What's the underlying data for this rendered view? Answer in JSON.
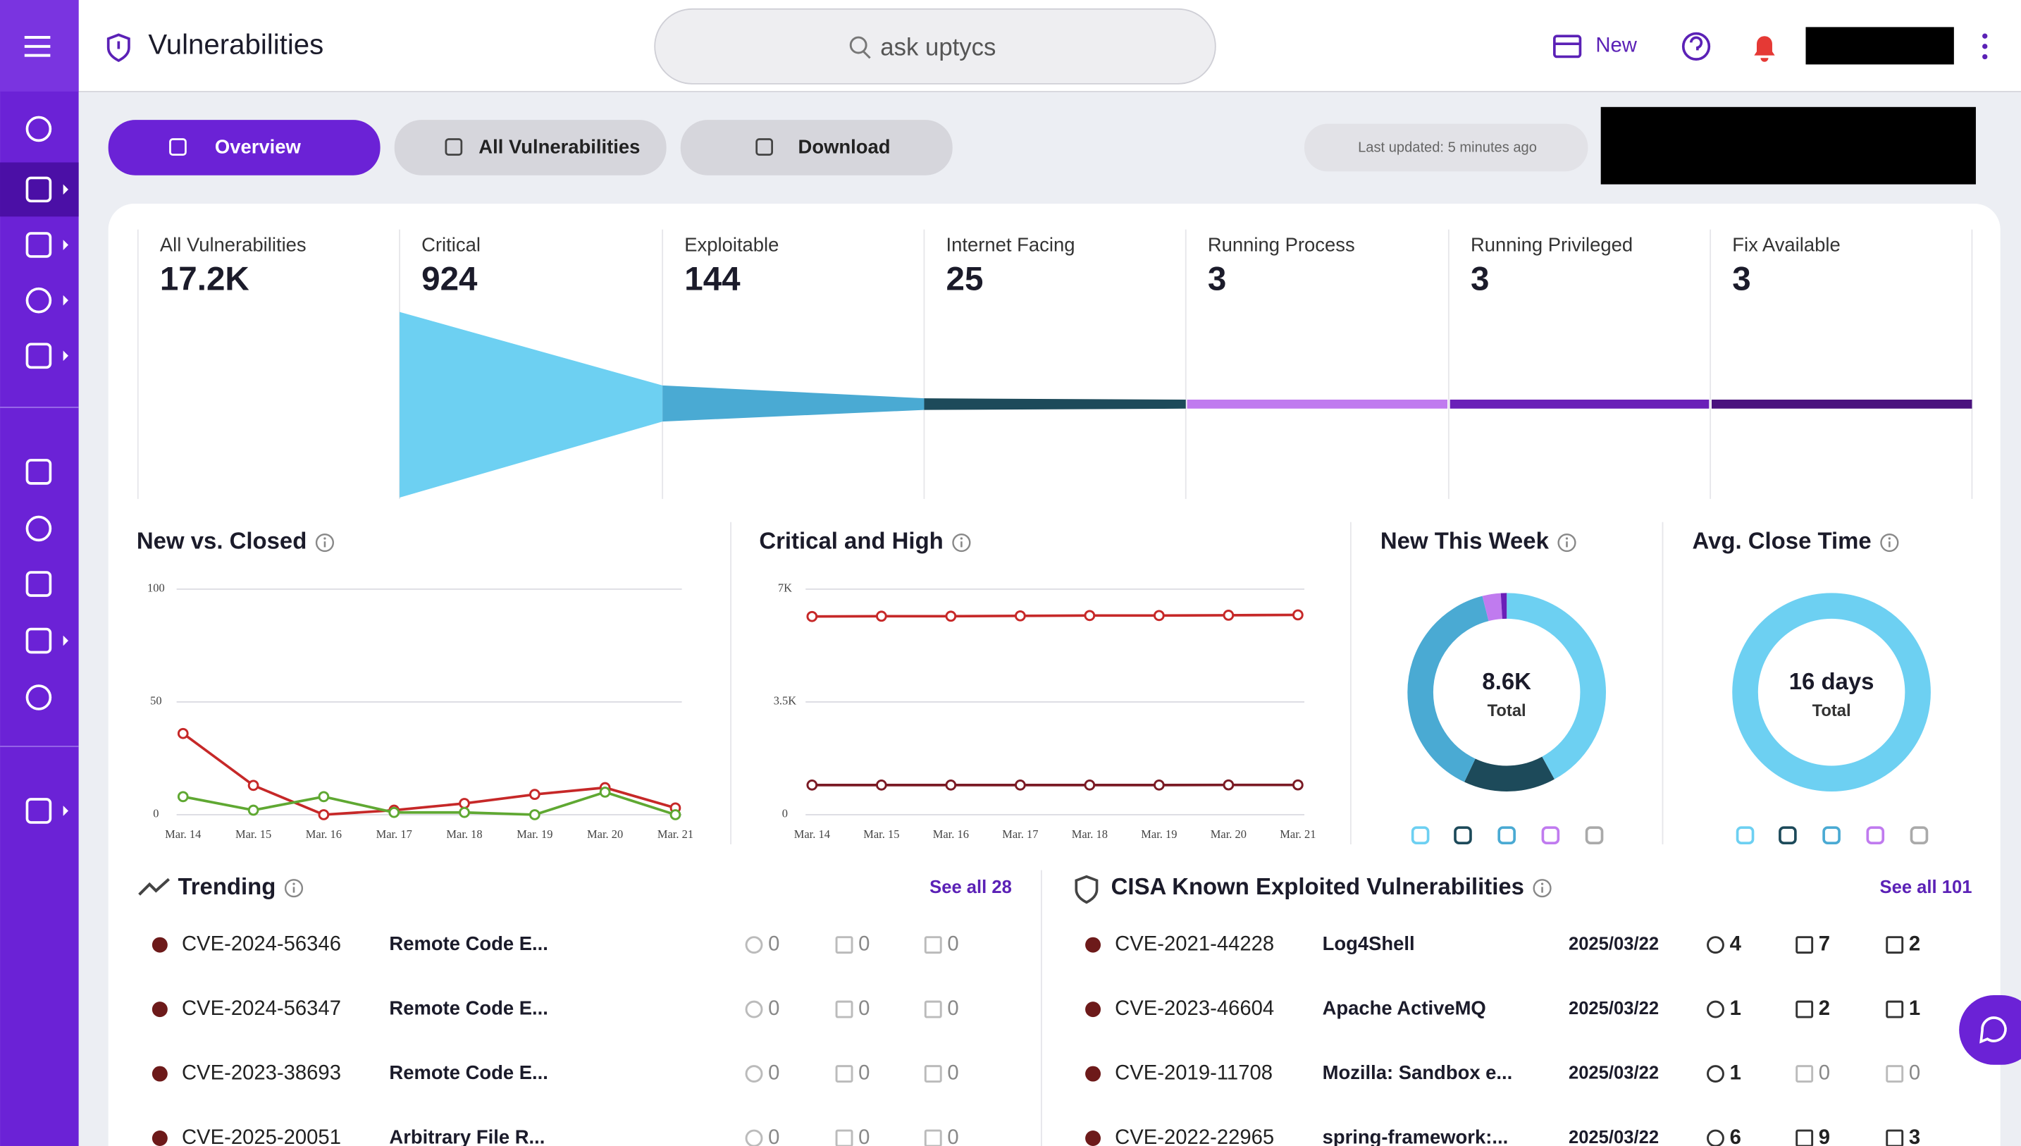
{
  "header": {
    "title": "Vulnerabilities",
    "search": "ask uptycs",
    "new": "New"
  },
  "toolbar": {
    "tabs": [
      "Overview",
      "All Vulnerabilities",
      "Download"
    ],
    "last_updated": "Last updated: 5 minutes ago"
  },
  "funnel": {
    "stages": [
      {
        "label": "All Vulnerabilities",
        "value": "17.2K"
      },
      {
        "label": "Critical",
        "value": "924"
      },
      {
        "label": "Exploitable",
        "value": "144"
      },
      {
        "label": "Internet Facing",
        "value": "25"
      },
      {
        "label": "Running Process",
        "value": "3"
      },
      {
        "label": "Running Privileged",
        "value": "3"
      },
      {
        "label": "Fix Available",
        "value": "3"
      }
    ]
  },
  "chart_data": [
    {
      "type": "line",
      "title": "New vs. Closed",
      "categories": [
        "Mar. 14",
        "Mar. 15",
        "Mar. 16",
        "Mar. 17",
        "Mar. 18",
        "Mar. 19",
        "Mar. 20",
        "Mar. 21"
      ],
      "series": [
        {
          "color": "#c62828",
          "values": [
            36,
            13,
            0,
            2,
            5,
            9,
            12,
            3
          ]
        },
        {
          "color": "#5fa832",
          "values": [
            8,
            2,
            8,
            1,
            1,
            0,
            10,
            0
          ]
        }
      ],
      "ylim": [
        0,
        100
      ],
      "yticks": [
        0,
        50,
        100
      ],
      "grid": true
    },
    {
      "type": "line",
      "title": "Critical and High",
      "categories": [
        "Mar. 14",
        "Mar. 15",
        "Mar. 16",
        "Mar. 17",
        "Mar. 18",
        "Mar. 19",
        "Mar. 20",
        "Mar. 21"
      ],
      "series": [
        {
          "color": "#c62828",
          "values": [
            6150,
            6160,
            6160,
            6170,
            6180,
            6180,
            6190,
            6200
          ]
        },
        {
          "color": "#7a1a24",
          "values": [
            920,
            920,
            920,
            920,
            920,
            920,
            924,
            924
          ]
        }
      ],
      "ylim": [
        0,
        7000
      ],
      "yticks": [
        0,
        {
          "value": 3500,
          "label": "3.5K"
        },
        {
          "value": 7000,
          "label": "7K"
        }
      ],
      "grid": true
    },
    {
      "type": "pie",
      "title": "New This Week",
      "center_value": "8.6K",
      "center_label": "Total",
      "values": [
        42,
        15,
        39,
        3,
        1
      ],
      "colors": [
        "#6dd0f2",
        "#1d4a5a",
        "#4aaad3",
        "#c07bef",
        "#6a1fb8"
      ]
    },
    {
      "type": "pie",
      "title": "Avg. Close Time",
      "center_value": "16 days",
      "center_label": "Total",
      "values": [
        100
      ],
      "colors": [
        "#6dd0f2"
      ]
    }
  ],
  "trending": {
    "title": "Trending",
    "see_all": "See all 28",
    "rows": [
      {
        "id": "CVE-2024-56346",
        "name": "Remote Code E...",
        "counts": [
          0,
          0,
          0
        ]
      },
      {
        "id": "CVE-2024-56347",
        "name": "Remote Code E...",
        "counts": [
          0,
          0,
          0
        ]
      },
      {
        "id": "CVE-2023-38693",
        "name": "Remote Code E...",
        "counts": [
          0,
          0,
          0
        ]
      },
      {
        "id": "CVE-2025-20051",
        "name": "Arbitrary File R...",
        "counts": [
          0,
          0,
          0
        ]
      }
    ]
  },
  "cisa": {
    "title": "CISA Known Exploited Vulnerabilities",
    "see_all": "See all 101",
    "rows": [
      {
        "id": "CVE-2021-44228",
        "name": "Log4Shell",
        "date": "2025/03/22",
        "counts": [
          4,
          7,
          2
        ]
      },
      {
        "id": "CVE-2023-46604",
        "name": "Apache ActiveMQ",
        "date": "2025/03/22",
        "counts": [
          1,
          2,
          1
        ]
      },
      {
        "id": "CVE-2019-11708",
        "name": "Mozilla: Sandbox e...",
        "date": "2025/03/22",
        "counts": [
          1,
          0,
          0
        ]
      },
      {
        "id": "CVE-2022-22965",
        "name": "spring-framework:...",
        "date": "2025/03/22",
        "counts": [
          6,
          9,
          3
        ]
      }
    ]
  }
}
